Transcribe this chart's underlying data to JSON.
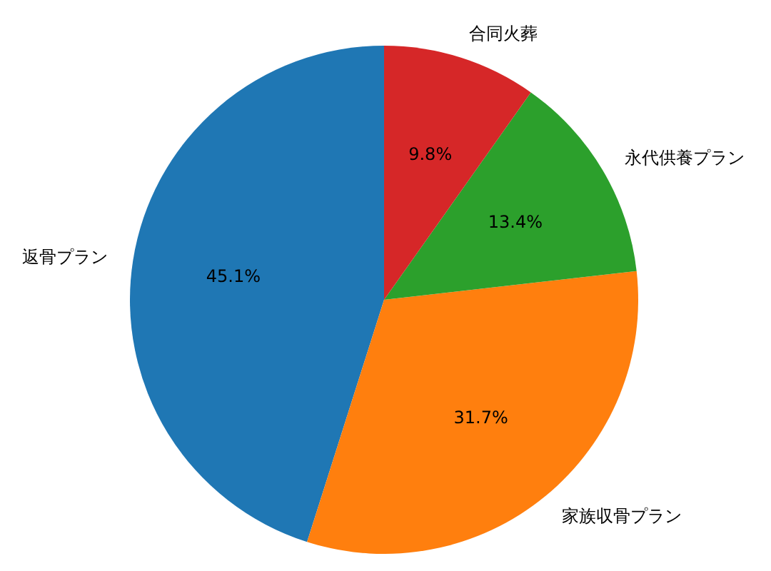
{
  "chart_data": {
    "type": "pie",
    "categories": [
      "返骨プラン",
      "家族収骨プラン",
      "永代供養プラン",
      "合同火葬"
    ],
    "values": [
      45.1,
      31.7,
      13.4,
      9.8
    ],
    "colors": [
      "#1f77b4",
      "#ff7f0e",
      "#2ca02c",
      "#d62728"
    ],
    "value_labels": [
      "45.1%",
      "31.7%",
      "13.4%",
      "9.8%"
    ]
  }
}
